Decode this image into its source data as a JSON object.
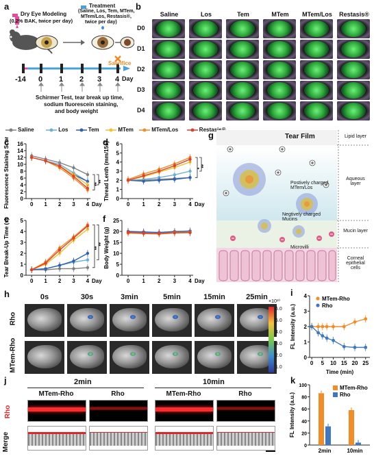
{
  "panel_letters": [
    "a",
    "b",
    "c",
    "d",
    "e",
    "f",
    "g",
    "h",
    "i",
    "j",
    "k"
  ],
  "panel_a": {
    "model_label_line1": "Dry Eye Modeling",
    "model_label_line2": "(0.2% BAK, twice per day)",
    "treatment_label_line1": "Treatment",
    "treatment_label_line2": "(Saline, Los, Tem, MTem,",
    "treatment_label_line3": "MTem/Los, Restasis®,",
    "treatment_label_line4": "twice per day)",
    "timeline_ticks": [
      "-14",
      "0",
      "1",
      "2",
      "3",
      "4"
    ],
    "day_label": "Day",
    "sacrifice_label": "Sacrifice",
    "tests_line1": "Schirmer Test, tear break up time,",
    "tests_line2": "sodium fluorescein staining,",
    "tests_line3": "and body weight"
  },
  "panel_b": {
    "columns": [
      "Saline",
      "Los",
      "Tem",
      "MTem",
      "MTem/Los",
      "Restasis®"
    ],
    "rows": [
      "D0",
      "D1",
      "D2",
      "D3",
      "D4"
    ]
  },
  "legend": {
    "items": [
      {
        "name": "Saline",
        "color": "#7f7f7f"
      },
      {
        "name": "Los",
        "color": "#6baed6"
      },
      {
        "name": "Tem",
        "color": "#2f5fb3"
      },
      {
        "name": "MTem",
        "color": "#f2c12e"
      },
      {
        "name": "MTem/Los",
        "color": "#f28c28"
      },
      {
        "name": "Restasis®",
        "color": "#e0402a"
      }
    ]
  },
  "chart_data": [
    {
      "panel": "c",
      "type": "line",
      "ylabel": "Fluorescence Staining Score",
      "xlabel": "Day",
      "x": [
        0,
        1,
        2,
        3,
        4
      ],
      "xticks": [
        "0",
        "1",
        "2",
        "3",
        "4"
      ],
      "ylim": [
        0,
        16
      ],
      "yticks": [
        "0",
        "2",
        "4",
        "6",
        "8",
        "10",
        "12",
        "14",
        "16"
      ],
      "series": [
        {
          "name": "Saline",
          "values": [
            12.5,
            11.5,
            10.5,
            9,
            7
          ]
        },
        {
          "name": "Los",
          "values": [
            12,
            11,
            10,
            7.5,
            5
          ]
        },
        {
          "name": "Tem",
          "values": [
            12,
            11,
            9.5,
            7,
            5
          ]
        },
        {
          "name": "MTem",
          "values": [
            12,
            11,
            9.5,
            7,
            4
          ]
        },
        {
          "name": "MTem/Los",
          "values": [
            12,
            11,
            9,
            6,
            2.5
          ]
        },
        {
          "name": "Restasis®",
          "values": [
            12,
            11,
            9.5,
            6.5,
            3
          ]
        }
      ],
      "significance": [
        "**",
        "**"
      ]
    },
    {
      "panel": "d",
      "type": "line",
      "ylabel": "Thread Lenth (mm/15s)",
      "xlabel": "Day",
      "x": [
        0,
        1,
        2,
        3,
        4
      ],
      "xticks": [
        "0",
        "1",
        "2",
        "3",
        "4"
      ],
      "ylim": [
        0,
        6
      ],
      "yticks": [
        "0",
        "1",
        "2",
        "3",
        "4",
        "5",
        "6"
      ],
      "series": [
        {
          "name": "Saline",
          "values": [
            2,
            2,
            2.1,
            2.2,
            2.3
          ]
        },
        {
          "name": "Los",
          "values": [
            2,
            2.1,
            2.3,
            2.6,
            3
          ]
        },
        {
          "name": "Tem",
          "values": [
            2,
            1.9,
            2,
            2.1,
            2.3
          ]
        },
        {
          "name": "MTem",
          "values": [
            2,
            2.4,
            2.9,
            3.4,
            4
          ]
        },
        {
          "name": "MTem/Los",
          "values": [
            2.1,
            2.7,
            3.2,
            3.8,
            4.5
          ]
        },
        {
          "name": "Restasis®",
          "values": [
            2,
            2.5,
            3,
            3.6,
            4.3
          ]
        }
      ],
      "significance": [
        "*",
        "**"
      ]
    },
    {
      "panel": "e",
      "type": "line",
      "ylabel": "Tear Break-Up Time (s)",
      "xlabel": "Day",
      "x": [
        0,
        1,
        2,
        3,
        4
      ],
      "xticks": [
        "0",
        "1",
        "2",
        "3",
        "4"
      ],
      "ylim": [
        0,
        5
      ],
      "yticks": [
        "0",
        "1",
        "2",
        "3",
        "4",
        "5"
      ],
      "series": [
        {
          "name": "Saline",
          "values": [
            0.5,
            0.5,
            0.6,
            0.6,
            0.7
          ]
        },
        {
          "name": "Los",
          "values": [
            0.5,
            0.6,
            0.9,
            1.2,
            1.4
          ]
        },
        {
          "name": "Tem",
          "values": [
            0.5,
            0.6,
            0.9,
            1.3,
            2
          ]
        },
        {
          "name": "MTem",
          "values": [
            0.5,
            1,
            2,
            3.2,
            4.2
          ]
        },
        {
          "name": "MTem/Los",
          "values": [
            0.5,
            1.2,
            2.5,
            3.5,
            4.6
          ]
        },
        {
          "name": "Restasis®",
          "values": [
            0.5,
            1.1,
            2.3,
            3.4,
            4.5
          ]
        }
      ],
      "significance": [
        "**",
        "**"
      ]
    },
    {
      "panel": "f",
      "type": "line",
      "ylabel": "Body Weight (g)",
      "xlabel": "Day",
      "x": [
        0,
        1,
        2,
        3,
        4
      ],
      "xticks": [
        "0",
        "1",
        "2",
        "3",
        "4"
      ],
      "ylim": [
        0,
        25
      ],
      "yticks": [
        "0",
        "5",
        "10",
        "15",
        "20",
        "25"
      ],
      "series": [
        {
          "name": "Saline",
          "values": [
            20,
            19.5,
            19.5,
            20,
            20
          ]
        },
        {
          "name": "Los",
          "values": [
            20,
            19.6,
            19.4,
            19.8,
            20
          ]
        },
        {
          "name": "Tem",
          "values": [
            20,
            19.8,
            19.5,
            19.9,
            20.2
          ]
        },
        {
          "name": "MTem",
          "values": [
            19.5,
            19,
            19,
            19.5,
            19.6
          ]
        },
        {
          "name": "MTem/Los",
          "values": [
            19.2,
            19,
            18.8,
            19.3,
            19.4
          ]
        },
        {
          "name": "Restasis®",
          "values": [
            19.5,
            19.2,
            19,
            19.4,
            19.5
          ]
        }
      ]
    },
    {
      "panel": "i",
      "type": "line",
      "ylabel": "FL Intensity (a.u.)",
      "xlabel": "Time (min)",
      "x": [
        0,
        3,
        5,
        7,
        10,
        15,
        20,
        25
      ],
      "xticks": [
        "0",
        "5",
        "10",
        "15",
        "20",
        "25"
      ],
      "ylim": [
        0,
        4
      ],
      "yticks": [
        "0",
        "1",
        "2",
        "3",
        "4"
      ],
      "series": [
        {
          "name": "MTem-Rho",
          "color": "#f28c28",
          "values": [
            2,
            2,
            2,
            2,
            2,
            2,
            2.3,
            2.5
          ]
        },
        {
          "name": "Rho",
          "color": "#3f78c0",
          "values": [
            2,
            1.6,
            1.4,
            1.25,
            1.1,
            0.7,
            0.65,
            0.65
          ]
        }
      ]
    },
    {
      "panel": "k",
      "type": "bar",
      "ylabel": "FL Intensity (a.u.)",
      "categories": [
        "2min",
        "10min"
      ],
      "ylim": [
        0,
        100
      ],
      "yticks": [
        "0",
        "20",
        "40",
        "60",
        "80",
        "100"
      ],
      "series": [
        {
          "name": "MTem-Rho",
          "color": "#f28c28",
          "values": [
            86,
            58
          ]
        },
        {
          "name": "Rho",
          "color": "#3f78c0",
          "values": [
            31,
            4
          ]
        }
      ]
    }
  ],
  "panel_g": {
    "title": "Tear Film",
    "layer_labels": [
      "Lipid layer",
      "Aqueous layer",
      "Mucin layer",
      "Corneal epithelial cells"
    ],
    "callouts": [
      "Postively charged MTem/Los",
      "Negtively charged Mucins",
      "Microvilli"
    ]
  },
  "panel_h": {
    "times": [
      "0s",
      "30s",
      "3min",
      "5min",
      "15min",
      "25min"
    ],
    "rows": [
      "Rho",
      "MTem-Rho"
    ],
    "colorbar_exp": "×10¹⁰",
    "colorbar_ticks": [
      "6.0",
      "5.0",
      "4.0",
      "3.0",
      "2.0",
      "1.0"
    ]
  },
  "panel_j": {
    "group_times": [
      "2min",
      "10min"
    ],
    "column_labels": [
      "MTem-Rho",
      "Rho",
      "MTem-Rho",
      "Rho"
    ],
    "row_labels": [
      "Rho",
      "Merge"
    ]
  }
}
